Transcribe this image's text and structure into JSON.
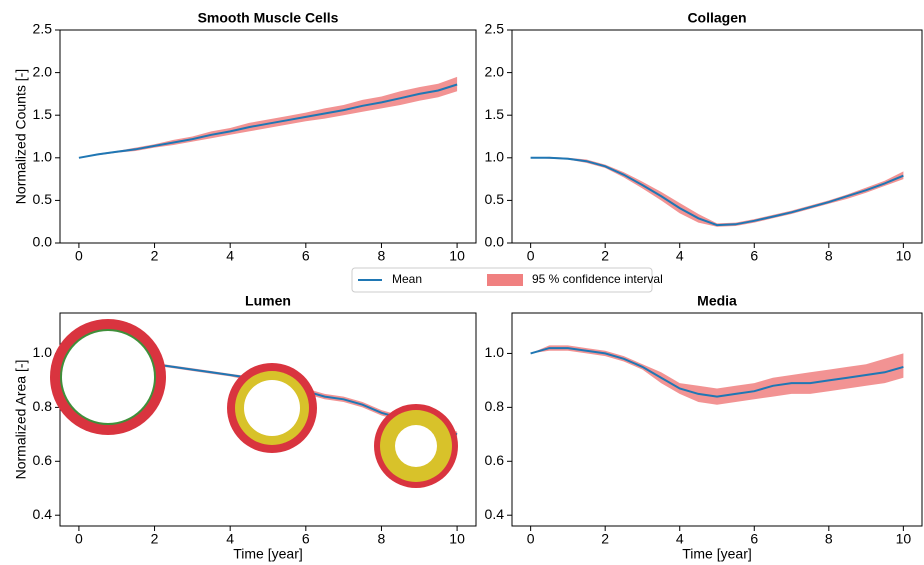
{
  "chart_data": [
    {
      "type": "line",
      "title": "Smooth Muscle Cells",
      "ylabel": "Normalized Counts [-]",
      "x": [
        0,
        0.5,
        1,
        1.5,
        2,
        2.5,
        3,
        3.5,
        4,
        4.5,
        5,
        5.5,
        6,
        6.5,
        7,
        7.5,
        8,
        8.5,
        9,
        9.5,
        10
      ],
      "series": [
        {
          "name": "Mean",
          "color": "#1f77b4",
          "values": [
            1.0,
            1.04,
            1.07,
            1.1,
            1.14,
            1.18,
            1.22,
            1.27,
            1.31,
            1.36,
            1.4,
            1.44,
            1.48,
            1.52,
            1.56,
            1.61,
            1.65,
            1.7,
            1.75,
            1.79,
            1.86
          ]
        }
      ],
      "band": {
        "name": "95 % confidence interval",
        "color": "#f08080",
        "lower": [
          1.0,
          1.03,
          1.06,
          1.08,
          1.12,
          1.15,
          1.19,
          1.23,
          1.27,
          1.31,
          1.35,
          1.39,
          1.43,
          1.46,
          1.5,
          1.54,
          1.58,
          1.62,
          1.67,
          1.71,
          1.78
        ],
        "upper": [
          1.0,
          1.05,
          1.08,
          1.12,
          1.16,
          1.21,
          1.25,
          1.31,
          1.35,
          1.41,
          1.45,
          1.49,
          1.53,
          1.58,
          1.62,
          1.68,
          1.72,
          1.78,
          1.83,
          1.87,
          1.95
        ]
      },
      "xlim": [
        -0.5,
        10.5
      ],
      "xticks": [
        0,
        2,
        4,
        6,
        8,
        10
      ],
      "ylim": [
        0,
        2.5
      ],
      "yticks": [
        {
          "value": 0,
          "label": "0.0"
        },
        0.5,
        {
          "value": 1,
          "label": "1.0"
        },
        1.5,
        {
          "value": 2,
          "label": "2.0"
        },
        2.5
      ]
    },
    {
      "type": "line",
      "title": "Collagen",
      "x": [
        0,
        0.5,
        1,
        1.5,
        2,
        2.5,
        3,
        3.5,
        4,
        4.5,
        5,
        5.5,
        6,
        6.5,
        7,
        7.5,
        8,
        8.5,
        9,
        9.5,
        10
      ],
      "series": [
        {
          "color": "#1f77b4",
          "values": [
            1.0,
            1.0,
            0.99,
            0.96,
            0.9,
            0.8,
            0.68,
            0.55,
            0.41,
            0.29,
            0.21,
            0.22,
            0.26,
            0.31,
            0.36,
            0.42,
            0.48,
            0.55,
            0.62,
            0.7,
            0.79
          ]
        }
      ],
      "band": {
        "color": "#f08080",
        "lower": [
          1.0,
          0.99,
          0.98,
          0.94,
          0.88,
          0.77,
          0.64,
          0.5,
          0.35,
          0.24,
          0.19,
          0.2,
          0.24,
          0.29,
          0.34,
          0.4,
          0.46,
          0.52,
          0.59,
          0.67,
          0.75
        ],
        "upper": [
          1.0,
          1.01,
          1.0,
          0.98,
          0.92,
          0.83,
          0.72,
          0.6,
          0.47,
          0.34,
          0.23,
          0.24,
          0.28,
          0.33,
          0.38,
          0.44,
          0.5,
          0.57,
          0.65,
          0.73,
          0.84
        ]
      },
      "xlim": [
        -0.5,
        10.5
      ],
      "xticks": [
        0,
        2,
        4,
        6,
        8,
        10
      ],
      "ylim": [
        0,
        2.5
      ],
      "yticks": [
        {
          "value": 0,
          "label": "0.0"
        },
        0.5,
        {
          "value": 1,
          "label": "1.0"
        },
        1.5,
        {
          "value": 2,
          "label": "2.0"
        },
        2.5
      ]
    },
    {
      "type": "line",
      "title": "Lumen",
      "ylabel": "Normalized Area [-]",
      "xlabel": "Time [year]",
      "x": [
        0,
        0.5,
        1,
        1.5,
        2,
        2.5,
        3,
        3.5,
        4,
        4.5,
        5,
        5.5,
        6,
        6.5,
        7,
        7.5,
        8,
        8.5,
        9,
        9.5,
        10
      ],
      "series": [
        {
          "color": "#1f77b4",
          "values": [
            1.0,
            0.99,
            0.98,
            0.97,
            0.96,
            0.95,
            0.94,
            0.93,
            0.92,
            0.91,
            0.89,
            0.88,
            0.86,
            0.84,
            0.83,
            0.81,
            0.78,
            0.76,
            0.74,
            0.72,
            0.7
          ]
        }
      ],
      "band": {
        "color": "#f08080",
        "lower": [
          1.0,
          0.99,
          0.98,
          0.97,
          0.955,
          0.945,
          0.935,
          0.925,
          0.915,
          0.9,
          0.885,
          0.87,
          0.85,
          0.83,
          0.82,
          0.8,
          0.77,
          0.75,
          0.73,
          0.71,
          0.69
        ],
        "upper": [
          1.0,
          0.995,
          0.985,
          0.975,
          0.965,
          0.955,
          0.945,
          0.935,
          0.925,
          0.915,
          0.9,
          0.89,
          0.87,
          0.85,
          0.84,
          0.82,
          0.79,
          0.77,
          0.75,
          0.73,
          0.71
        ]
      },
      "xlim": [
        -0.5,
        10.5
      ],
      "xticks": [
        0,
        2,
        4,
        6,
        8,
        10
      ],
      "ylim": [
        0.36,
        1.15
      ],
      "yticks": [
        0.4,
        0.6,
        0.8,
        {
          "value": 1,
          "label": "1.0"
        }
      ]
    },
    {
      "type": "line",
      "title": "Media",
      "xlabel": "Time [year]",
      "x": [
        0,
        0.5,
        1,
        1.5,
        2,
        2.5,
        3,
        3.5,
        4,
        4.5,
        5,
        5.5,
        6,
        6.5,
        7,
        7.5,
        8,
        8.5,
        9,
        9.5,
        10
      ],
      "series": [
        {
          "color": "#1f77b4",
          "values": [
            1.0,
            1.02,
            1.02,
            1.01,
            1.0,
            0.98,
            0.95,
            0.91,
            0.87,
            0.85,
            0.84,
            0.85,
            0.86,
            0.88,
            0.89,
            0.89,
            0.9,
            0.91,
            0.92,
            0.93,
            0.95
          ]
        }
      ],
      "band": {
        "color": "#f08080",
        "lower": [
          1.0,
          1.01,
          1.01,
          1.0,
          0.99,
          0.97,
          0.94,
          0.89,
          0.85,
          0.82,
          0.81,
          0.82,
          0.83,
          0.84,
          0.85,
          0.85,
          0.86,
          0.87,
          0.88,
          0.89,
          0.91
        ],
        "upper": [
          1.0,
          1.03,
          1.03,
          1.02,
          1.01,
          0.99,
          0.96,
          0.93,
          0.89,
          0.88,
          0.87,
          0.88,
          0.89,
          0.91,
          0.92,
          0.93,
          0.94,
          0.95,
          0.96,
          0.98,
          1.0
        ]
      },
      "xlim": [
        -0.5,
        10.5
      ],
      "xticks": [
        0,
        2,
        4,
        6,
        8,
        10
      ],
      "ylim": [
        0.36,
        1.15
      ],
      "yticks": [
        0.4,
        0.6,
        0.8,
        {
          "value": 1,
          "label": "1.0"
        }
      ]
    }
  ]
}
